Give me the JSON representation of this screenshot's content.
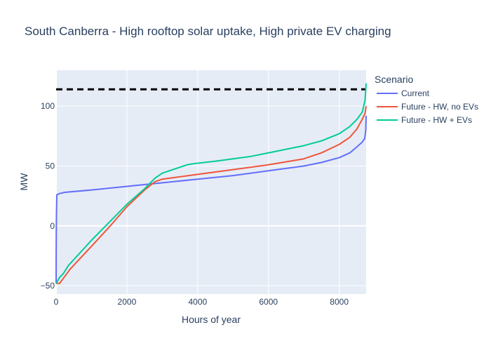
{
  "chart_data": {
    "type": "line",
    "title": "South Canberra - High rooftop solar uptake, High private EV charging",
    "xlabel": "Hours of year",
    "ylabel": "MW",
    "xlim": [
      0,
      8760
    ],
    "ylim": [
      -57,
      130
    ],
    "x_ticks": [
      0,
      2000,
      4000,
      6000,
      8000
    ],
    "x_tick_labels": [
      "0",
      "2000",
      "4000",
      "6000",
      "8000"
    ],
    "y_ticks": [
      -50,
      0,
      50,
      100
    ],
    "y_tick_labels": [
      "−50",
      "0",
      "50",
      "100"
    ],
    "grid": true,
    "background": "#e5ecf6",
    "legend": {
      "title": "Scenario",
      "position": "right"
    },
    "reference_line": {
      "y": 114,
      "style": "dashed",
      "color": "#000000"
    },
    "series": [
      {
        "name": "Current",
        "color": "#636efa",
        "points": [
          [
            0,
            -48
          ],
          [
            1,
            -30
          ],
          [
            5,
            -5
          ],
          [
            10,
            10
          ],
          [
            20,
            26
          ],
          [
            100,
            27
          ],
          [
            240,
            28
          ],
          [
            1000,
            30
          ],
          [
            2000,
            33
          ],
          [
            3000,
            36
          ],
          [
            4000,
            39
          ],
          [
            5000,
            42
          ],
          [
            6000,
            46
          ],
          [
            7000,
            50
          ],
          [
            7500,
            53
          ],
          [
            8000,
            57
          ],
          [
            8300,
            61
          ],
          [
            8500,
            66
          ],
          [
            8650,
            70
          ],
          [
            8720,
            73
          ],
          [
            8750,
            80
          ],
          [
            8760,
            92
          ]
        ]
      },
      {
        "name": "Future - HW, no EVs",
        "color": "#ef553b",
        "points": [
          [
            0,
            -48
          ],
          [
            100,
            -48
          ],
          [
            200,
            -44
          ],
          [
            400,
            -36
          ],
          [
            1000,
            -17
          ],
          [
            1500,
            -1
          ],
          [
            2000,
            16
          ],
          [
            2500,
            30
          ],
          [
            2800,
            37
          ],
          [
            3000,
            39
          ],
          [
            3500,
            41
          ],
          [
            4000,
            43
          ],
          [
            5000,
            47
          ],
          [
            6000,
            51
          ],
          [
            7000,
            56
          ],
          [
            7500,
            61
          ],
          [
            8000,
            68
          ],
          [
            8300,
            74
          ],
          [
            8500,
            81
          ],
          [
            8650,
            89
          ],
          [
            8730,
            94
          ],
          [
            8760,
            100
          ]
        ]
      },
      {
        "name": "Future - HW + EVs",
        "color": "#00cc96",
        "points": [
          [
            0,
            -48
          ],
          [
            100,
            -43
          ],
          [
            200,
            -40
          ],
          [
            350,
            -33
          ],
          [
            1000,
            -12
          ],
          [
            1500,
            3
          ],
          [
            2000,
            18
          ],
          [
            2500,
            31
          ],
          [
            2800,
            40
          ],
          [
            3000,
            44
          ],
          [
            3300,
            47
          ],
          [
            3700,
            51
          ],
          [
            3900,
            52
          ],
          [
            4500,
            54
          ],
          [
            5000,
            56
          ],
          [
            5500,
            58
          ],
          [
            6000,
            61
          ],
          [
            6500,
            64
          ],
          [
            7000,
            67
          ],
          [
            7500,
            71
          ],
          [
            8000,
            77
          ],
          [
            8300,
            83
          ],
          [
            8500,
            89
          ],
          [
            8650,
            95
          ],
          [
            8730,
            105
          ],
          [
            8760,
            119
          ]
        ]
      }
    ]
  }
}
